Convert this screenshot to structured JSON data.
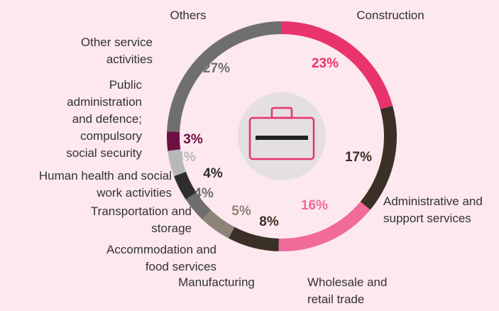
{
  "chart_data": {
    "type": "donut",
    "categories": [
      "Construction",
      "Administrative and support services",
      "Wholesale and retail trade",
      "Manufacturing",
      "Accommodation and food services",
      "Transportation and storage",
      "Human health and social work activities",
      "Public administration and defence; compulsory social security",
      "Other service activities",
      "Others"
    ],
    "values": [
      23,
      17,
      16,
      8,
      5,
      4,
      4,
      4,
      3,
      27
    ],
    "value_labels": [
      "23%",
      "17%",
      "16%",
      "8%",
      "5%",
      "4%",
      "4%",
      "4%",
      "3%",
      "27%"
    ],
    "colors": [
      "#e8336b",
      "#3a3025",
      "#f06a9a",
      "#3a3025",
      "#8c8478",
      "#6e6e6e",
      "#2e2e2e",
      "#b8b8b8",
      "#6b1040",
      "#6f6f6f"
    ]
  }
}
